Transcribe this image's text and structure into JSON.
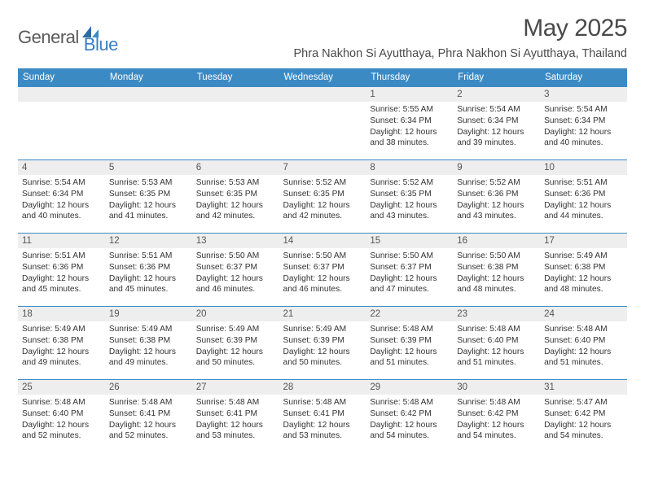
{
  "logo": {
    "general": "General",
    "blue": "Blue"
  },
  "title": "May 2025",
  "location": "Phra Nakhon Si Ayutthaya, Phra Nakhon Si Ayutthaya, Thailand",
  "weekdays": [
    "Sunday",
    "Monday",
    "Tuesday",
    "Wednesday",
    "Thursday",
    "Friday",
    "Saturday"
  ],
  "colors": {
    "header_bg": "#3b8ac4",
    "header_text": "#ffffff",
    "daynum_bg": "#eeeeee",
    "row_border": "#3b8ac4",
    "text": "#333333",
    "logo_gray": "#5a5a5a",
    "logo_blue": "#3b7fc4"
  },
  "fonts": {
    "title_size_pt": 22,
    "location_size_pt": 11,
    "weekday_size_pt": 9,
    "daynum_size_pt": 9,
    "body_size_pt": 8
  },
  "layout": {
    "columns": 7,
    "rows": 5,
    "start_weekday_index": 4
  },
  "weeks": [
    [
      {
        "n": "",
        "sr": "",
        "ss": "",
        "dl": ""
      },
      {
        "n": "",
        "sr": "",
        "ss": "",
        "dl": ""
      },
      {
        "n": "",
        "sr": "",
        "ss": "",
        "dl": ""
      },
      {
        "n": "",
        "sr": "",
        "ss": "",
        "dl": ""
      },
      {
        "n": "1",
        "sr": "Sunrise: 5:55 AM",
        "ss": "Sunset: 6:34 PM",
        "dl": "Daylight: 12 hours and 38 minutes."
      },
      {
        "n": "2",
        "sr": "Sunrise: 5:54 AM",
        "ss": "Sunset: 6:34 PM",
        "dl": "Daylight: 12 hours and 39 minutes."
      },
      {
        "n": "3",
        "sr": "Sunrise: 5:54 AM",
        "ss": "Sunset: 6:34 PM",
        "dl": "Daylight: 12 hours and 40 minutes."
      }
    ],
    [
      {
        "n": "4",
        "sr": "Sunrise: 5:54 AM",
        "ss": "Sunset: 6:34 PM",
        "dl": "Daylight: 12 hours and 40 minutes."
      },
      {
        "n": "5",
        "sr": "Sunrise: 5:53 AM",
        "ss": "Sunset: 6:35 PM",
        "dl": "Daylight: 12 hours and 41 minutes."
      },
      {
        "n": "6",
        "sr": "Sunrise: 5:53 AM",
        "ss": "Sunset: 6:35 PM",
        "dl": "Daylight: 12 hours and 42 minutes."
      },
      {
        "n": "7",
        "sr": "Sunrise: 5:52 AM",
        "ss": "Sunset: 6:35 PM",
        "dl": "Daylight: 12 hours and 42 minutes."
      },
      {
        "n": "8",
        "sr": "Sunrise: 5:52 AM",
        "ss": "Sunset: 6:35 PM",
        "dl": "Daylight: 12 hours and 43 minutes."
      },
      {
        "n": "9",
        "sr": "Sunrise: 5:52 AM",
        "ss": "Sunset: 6:36 PM",
        "dl": "Daylight: 12 hours and 43 minutes."
      },
      {
        "n": "10",
        "sr": "Sunrise: 5:51 AM",
        "ss": "Sunset: 6:36 PM",
        "dl": "Daylight: 12 hours and 44 minutes."
      }
    ],
    [
      {
        "n": "11",
        "sr": "Sunrise: 5:51 AM",
        "ss": "Sunset: 6:36 PM",
        "dl": "Daylight: 12 hours and 45 minutes."
      },
      {
        "n": "12",
        "sr": "Sunrise: 5:51 AM",
        "ss": "Sunset: 6:36 PM",
        "dl": "Daylight: 12 hours and 45 minutes."
      },
      {
        "n": "13",
        "sr": "Sunrise: 5:50 AM",
        "ss": "Sunset: 6:37 PM",
        "dl": "Daylight: 12 hours and 46 minutes."
      },
      {
        "n": "14",
        "sr": "Sunrise: 5:50 AM",
        "ss": "Sunset: 6:37 PM",
        "dl": "Daylight: 12 hours and 46 minutes."
      },
      {
        "n": "15",
        "sr": "Sunrise: 5:50 AM",
        "ss": "Sunset: 6:37 PM",
        "dl": "Daylight: 12 hours and 47 minutes."
      },
      {
        "n": "16",
        "sr": "Sunrise: 5:50 AM",
        "ss": "Sunset: 6:38 PM",
        "dl": "Daylight: 12 hours and 48 minutes."
      },
      {
        "n": "17",
        "sr": "Sunrise: 5:49 AM",
        "ss": "Sunset: 6:38 PM",
        "dl": "Daylight: 12 hours and 48 minutes."
      }
    ],
    [
      {
        "n": "18",
        "sr": "Sunrise: 5:49 AM",
        "ss": "Sunset: 6:38 PM",
        "dl": "Daylight: 12 hours and 49 minutes."
      },
      {
        "n": "19",
        "sr": "Sunrise: 5:49 AM",
        "ss": "Sunset: 6:38 PM",
        "dl": "Daylight: 12 hours and 49 minutes."
      },
      {
        "n": "20",
        "sr": "Sunrise: 5:49 AM",
        "ss": "Sunset: 6:39 PM",
        "dl": "Daylight: 12 hours and 50 minutes."
      },
      {
        "n": "21",
        "sr": "Sunrise: 5:49 AM",
        "ss": "Sunset: 6:39 PM",
        "dl": "Daylight: 12 hours and 50 minutes."
      },
      {
        "n": "22",
        "sr": "Sunrise: 5:48 AM",
        "ss": "Sunset: 6:39 PM",
        "dl": "Daylight: 12 hours and 51 minutes."
      },
      {
        "n": "23",
        "sr": "Sunrise: 5:48 AM",
        "ss": "Sunset: 6:40 PM",
        "dl": "Daylight: 12 hours and 51 minutes."
      },
      {
        "n": "24",
        "sr": "Sunrise: 5:48 AM",
        "ss": "Sunset: 6:40 PM",
        "dl": "Daylight: 12 hours and 51 minutes."
      }
    ],
    [
      {
        "n": "25",
        "sr": "Sunrise: 5:48 AM",
        "ss": "Sunset: 6:40 PM",
        "dl": "Daylight: 12 hours and 52 minutes."
      },
      {
        "n": "26",
        "sr": "Sunrise: 5:48 AM",
        "ss": "Sunset: 6:41 PM",
        "dl": "Daylight: 12 hours and 52 minutes."
      },
      {
        "n": "27",
        "sr": "Sunrise: 5:48 AM",
        "ss": "Sunset: 6:41 PM",
        "dl": "Daylight: 12 hours and 53 minutes."
      },
      {
        "n": "28",
        "sr": "Sunrise: 5:48 AM",
        "ss": "Sunset: 6:41 PM",
        "dl": "Daylight: 12 hours and 53 minutes."
      },
      {
        "n": "29",
        "sr": "Sunrise: 5:48 AM",
        "ss": "Sunset: 6:42 PM",
        "dl": "Daylight: 12 hours and 54 minutes."
      },
      {
        "n": "30",
        "sr": "Sunrise: 5:48 AM",
        "ss": "Sunset: 6:42 PM",
        "dl": "Daylight: 12 hours and 54 minutes."
      },
      {
        "n": "31",
        "sr": "Sunrise: 5:47 AM",
        "ss": "Sunset: 6:42 PM",
        "dl": "Daylight: 12 hours and 54 minutes."
      }
    ]
  ]
}
